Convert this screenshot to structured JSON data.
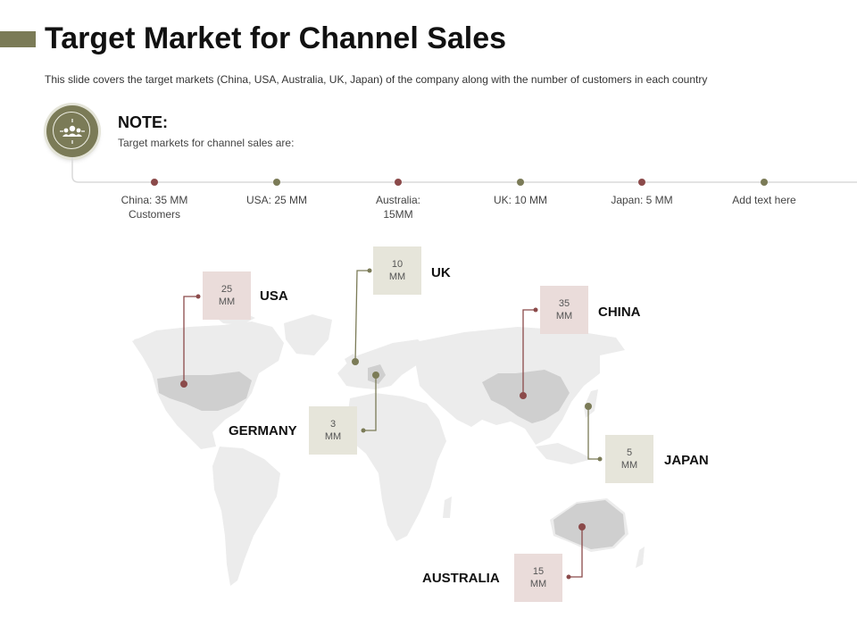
{
  "header": {
    "title": "Target Market for Channel Sales",
    "subtitle": "This slide covers the target markets (China,  USA, Australia, UK, Japan) of the company along with the number of customers in each country"
  },
  "note": {
    "icon": "people-target-icon",
    "title": "NOTE:",
    "text": "Target  markets for channel sales are:"
  },
  "timeline": {
    "items": [
      {
        "line1": "China: 35 MM",
        "line2": "Customers"
      },
      {
        "line1": "USA: 25 MM",
        "line2": ""
      },
      {
        "line1": "Australia:",
        "line2": "15MM"
      },
      {
        "line1": "UK: 10 MM",
        "line2": ""
      },
      {
        "line1": "Japan: 5 MM",
        "line2": ""
      },
      {
        "line1": "Add text here",
        "line2": ""
      }
    ]
  },
  "map": {
    "markers": [
      {
        "country": "USA",
        "value": "25",
        "unit": "MM"
      },
      {
        "country": "UK",
        "value": "10",
        "unit": "MM"
      },
      {
        "country": "CHINA",
        "value": "35",
        "unit": "MM"
      },
      {
        "country": "GERMANY",
        "value": "3",
        "unit": "MM"
      },
      {
        "country": "JAPAN",
        "value": "5",
        "unit": "MM"
      },
      {
        "country": "AUSTRALIA",
        "value": "15",
        "unit": "MM"
      }
    ]
  },
  "colors": {
    "olive": "#7b7b57",
    "maroon": "#8b4a4a",
    "pink_box": "#eadcda",
    "olive_box": "#e6e5da",
    "land": "#ececec",
    "highlight_land": "#cfcfcf"
  }
}
